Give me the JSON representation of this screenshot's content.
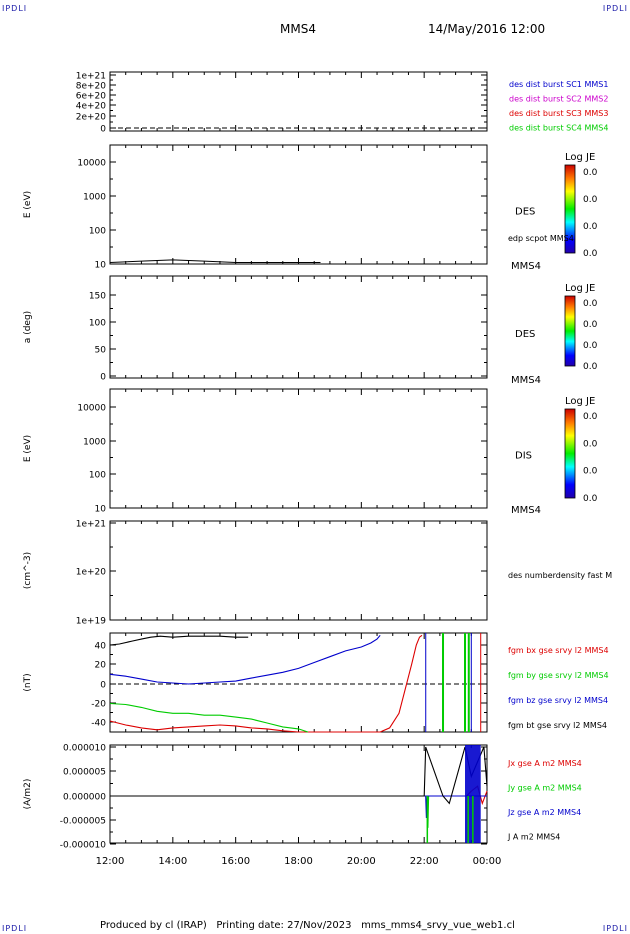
{
  "header": {
    "corner_label": "IPDLI",
    "spacecraft": "MMS4",
    "date_time": "14/May/2016 12:00"
  },
  "footer": {
    "produced_by": "Produced by cl (IRAP)",
    "printing_date": "Printing date: 27/Nov/2023",
    "file": "mms_mms4_srvy_vue_web1.cl"
  },
  "colors": {
    "blue": "#0000cc",
    "magenta": "#cc00cc",
    "red": "#dd0000",
    "green": "#00cc00",
    "black": "#000000"
  },
  "chart_data": [
    {
      "type": "line",
      "panel": "des-dist-burst",
      "yticks": [
        "1e+21",
        "8e+20",
        "6e+20",
        "4e+20",
        "2e+20",
        "0"
      ],
      "ylim": [
        0,
        1e+21
      ],
      "ylabel": "",
      "reference_line": 0,
      "series": [
        {
          "name": "des dist burst SC1 MMS1",
          "color": "#0000cc",
          "values": []
        },
        {
          "name": "des dist burst SC2 MMS2",
          "color": "#cc00cc",
          "values": []
        },
        {
          "name": "des dist burst SC3 MMS3",
          "color": "#dd0000",
          "values": []
        },
        {
          "name": "des dist burst SC4 MMS4",
          "color": "#00cc00",
          "values": []
        }
      ]
    },
    {
      "type": "heatmap",
      "panel": "des-energy",
      "ylabel": "E (eV)",
      "scale": "log",
      "yticks": [
        "10000",
        "1000",
        "100",
        "10"
      ],
      "ylim": [
        10,
        20000
      ],
      "instrument": "DES",
      "satellite": "MMS4",
      "overlay": {
        "name": "edp scpot MMS4",
        "x": [
          12.0,
          13.0,
          14.0,
          15.0,
          16.0,
          17.0,
          18.0,
          18.7
        ],
        "y": [
          11,
          12,
          13,
          12,
          11,
          11,
          11,
          11
        ]
      },
      "colorbar": {
        "title": "Log JE",
        "ticks": [
          "0.0",
          "0.0",
          "0.0",
          "0.0"
        ]
      }
    },
    {
      "type": "heatmap",
      "panel": "des-pitch",
      "ylabel": "a (deg)",
      "yticks": [
        "150",
        "100",
        "50",
        "0"
      ],
      "ylim": [
        0,
        180
      ],
      "instrument": "DES",
      "satellite": "MMS4",
      "colorbar": {
        "title": "Log JE",
        "ticks": [
          "0.0",
          "0.0",
          "0.0",
          "0.0"
        ]
      }
    },
    {
      "type": "heatmap",
      "panel": "dis-energy",
      "ylabel": "E (eV)",
      "scale": "log",
      "yticks": [
        "10000",
        "1000",
        "100",
        "10"
      ],
      "ylim": [
        10,
        20000
      ],
      "instrument": "DIS",
      "satellite": "MMS4",
      "colorbar": {
        "title": "Log JE",
        "ticks": [
          "0.0",
          "0.0",
          "0.0",
          "0.0"
        ]
      }
    },
    {
      "type": "line",
      "panel": "des-density",
      "ylabel": "(cm^-3)",
      "scale": "log",
      "yticks": [
        "1e+21",
        "1e+20",
        "1e+19"
      ],
      "ylim": [
        1e+19,
        1e+21
      ],
      "series": [
        {
          "name": "des numberdensity fast M",
          "color": "#000000",
          "values": []
        }
      ]
    },
    {
      "type": "line",
      "panel": "fgm-b",
      "ylabel": "(nT)",
      "yticks": [
        "40",
        "20",
        "0",
        "-20",
        "-40"
      ],
      "ylim": [
        -50,
        50
      ],
      "reference_line": 0,
      "series": [
        {
          "name": "fgm bx gse srvy l2 MMS4",
          "color": "#dd0000",
          "x": [
            12.0,
            12.5,
            13.0,
            13.5,
            14.0,
            14.5,
            15.0,
            15.5,
            16.0,
            16.5,
            17.0,
            17.5,
            18.0,
            18.4,
            20.6,
            20.9,
            21.2,
            21.4,
            21.6,
            21.75,
            21.85,
            21.93
          ],
          "y": [
            -38,
            -42,
            -45,
            -47,
            -45,
            -44,
            -43,
            -42,
            -43,
            -45,
            -46,
            -48,
            -50,
            -52,
            -50,
            -45,
            -30,
            -5,
            20,
            40,
            48,
            50
          ]
        },
        {
          "name": "fgm by gse srvy l2 MMS4",
          "color": "#00cc00",
          "x": [
            12.0,
            12.5,
            13.0,
            13.5,
            14.0,
            14.5,
            15.0,
            15.5,
            16.0,
            16.5,
            17.0,
            17.5,
            18.0,
            18.3
          ],
          "y": [
            -20,
            -21,
            -24,
            -28,
            -30,
            -30,
            -32,
            -32,
            -34,
            -36,
            -40,
            -44,
            -46,
            -50
          ]
        },
        {
          "name": "fgm bz gse srvy l2 MMS4",
          "color": "#0000cc",
          "x": [
            12.0,
            12.5,
            13.0,
            13.5,
            14.0,
            14.5,
            15.0,
            15.5,
            16.0,
            16.5,
            17.0,
            17.5,
            18.0,
            18.5,
            19.0,
            19.5,
            20.0,
            20.3,
            20.5,
            20.6
          ],
          "y": [
            10,
            8,
            5,
            2,
            1,
            0,
            1,
            2,
            3,
            6,
            9,
            12,
            16,
            22,
            28,
            34,
            38,
            42,
            46,
            50
          ]
        },
        {
          "name": "fgm bt gse srvy l2 MMS4",
          "color": "#000000",
          "x": [
            12.0,
            12.3,
            12.7,
            13.0,
            13.3,
            13.6,
            14.0,
            14.5,
            15.0,
            15.5,
            16.0,
            16.4
          ],
          "y": [
            40,
            41,
            44,
            46,
            48,
            49,
            48,
            49,
            49,
            49,
            48,
            48
          ]
        }
      ]
    },
    {
      "type": "line",
      "panel": "j-current",
      "ylabel": "(A/m2)",
      "yticks": [
        "0.000010",
        "0.000005",
        "0.000000",
        "-0.000005",
        "-0.000010"
      ],
      "ylim": [
        -1e-05,
        1e-05
      ],
      "xlabel": "",
      "xticks": [
        "12:00",
        "14:00",
        "16:00",
        "18:00",
        "20:00",
        "22:00",
        "00:00"
      ],
      "xlim": [
        12,
        24
      ],
      "series": [
        {
          "name": "Jx gse A m2 MMS4",
          "color": "#dd0000",
          "x": [
            12.0,
            23.35,
            23.5,
            23.7,
            23.85,
            24.0
          ],
          "y": [
            0,
            0,
            1e-06,
            2e-06,
            -1.5e-06,
            1e-06
          ]
        },
        {
          "name": "Jy gse A m2 MMS4",
          "color": "#00cc00",
          "x": [
            12.0,
            22.1,
            22.12,
            22.14,
            24.0
          ],
          "y": [
            0,
            0,
            -6.5e-06,
            0,
            0
          ]
        },
        {
          "name": "Jz gse A m2 MMS4",
          "color": "#0000cc",
          "x": [
            12.0,
            22.05,
            22.07,
            22.09,
            24.0
          ],
          "y": [
            0,
            0,
            -4.5e-06,
            0,
            0
          ]
        },
        {
          "name": "J A m2 MMS4",
          "color": "#000000",
          "x": [
            12.0,
            22.0,
            22.05,
            22.6,
            22.8,
            23.3,
            23.5,
            23.9,
            24.0
          ],
          "y": [
            0,
            0,
            1e-05,
            0,
            -1.5e-06,
            1e-05,
            4e-06,
            1e-05,
            2e-06
          ]
        }
      ]
    }
  ]
}
